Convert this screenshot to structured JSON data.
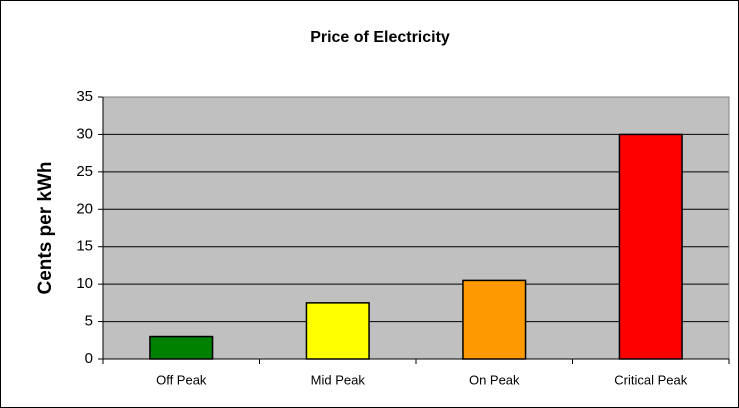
{
  "chart_data": {
    "type": "bar",
    "title": "Price of Electricity",
    "y_label": "Cents per kWh",
    "categories": [
      "Off Peak",
      "Mid Peak",
      "On Peak",
      "Critical Peak"
    ],
    "values": [
      3,
      7.5,
      10.5,
      30
    ],
    "colors": [
      "#008000",
      "#ffff00",
      "#ff9900",
      "#ff0000"
    ],
    "ylim": [
      0,
      35
    ],
    "yticks": [
      0,
      5,
      10,
      15,
      20,
      25,
      30,
      35
    ],
    "grid": true
  }
}
